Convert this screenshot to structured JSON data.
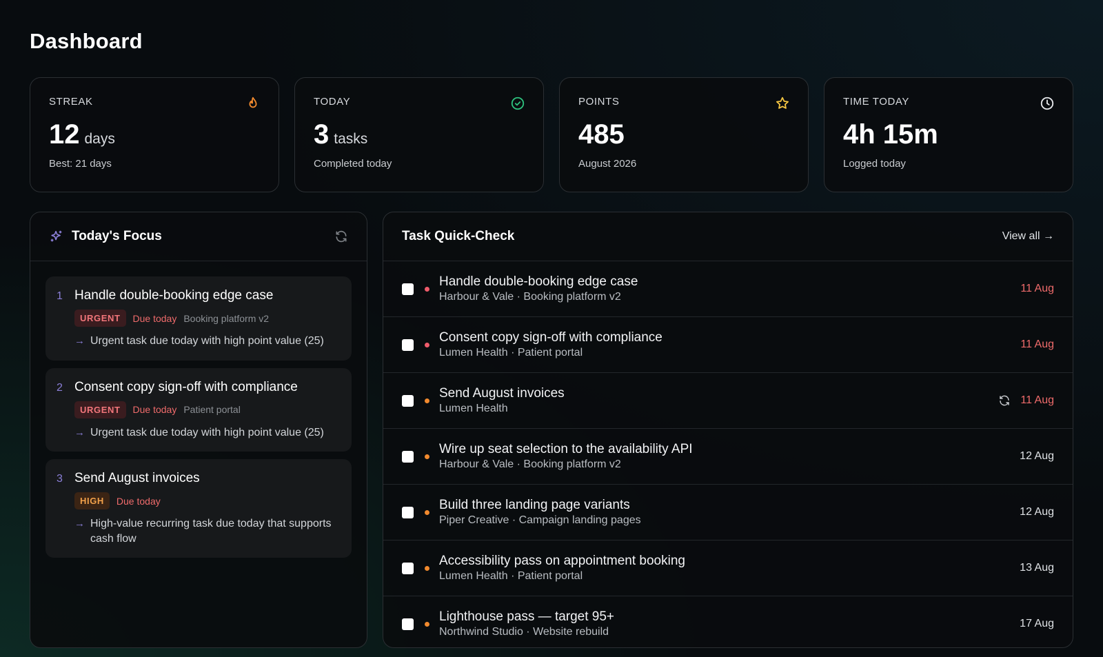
{
  "page": {
    "title": "Dashboard"
  },
  "colors": {
    "urgent": "#ef5b6b",
    "high": "#f28a2e",
    "accent": "#8b7fd8",
    "check_green": "#2ec27e",
    "star_yellow": "#f5c542"
  },
  "stats": [
    {
      "label": "STREAK",
      "icon": "flame-icon",
      "value": "12",
      "unit": "days",
      "sub": "Best: 21 days"
    },
    {
      "label": "TODAY",
      "icon": "check-circle-icon",
      "value": "3",
      "unit": "tasks",
      "sub": "Completed today"
    },
    {
      "label": "POINTS",
      "icon": "star-icon",
      "value": "485",
      "unit": "",
      "sub": "August 2026"
    },
    {
      "label": "TIME TODAY",
      "icon": "clock-icon",
      "value": "4h 15m",
      "unit": "",
      "sub": "Logged today"
    }
  ],
  "focus": {
    "title": "Today's Focus",
    "items": [
      {
        "index": "1",
        "title": "Handle double-booking edge case",
        "priority": "URGENT",
        "due": "Due today",
        "project": "Booking platform v2",
        "reason": "Urgent task due today with high point value (25)"
      },
      {
        "index": "2",
        "title": "Consent copy sign-off with compliance",
        "priority": "URGENT",
        "due": "Due today",
        "project": "Patient portal",
        "reason": "Urgent task due today with high point value (25)"
      },
      {
        "index": "3",
        "title": "Send August invoices",
        "priority": "HIGH",
        "due": "Due today",
        "project": "",
        "reason": "High-value recurring task due today that supports cash flow"
      }
    ]
  },
  "tasks": {
    "title": "Task Quick-Check",
    "view_all": "View all →",
    "rows": [
      {
        "title": "Handle double-booking edge case",
        "sub": "Harbour & Vale · Booking platform v2",
        "date": "11 Aug",
        "priority": "urgent",
        "overdue": true,
        "recurring": false
      },
      {
        "title": "Consent copy sign-off with compliance",
        "sub": "Lumen Health · Patient portal",
        "date": "11 Aug",
        "priority": "urgent",
        "overdue": true,
        "recurring": false
      },
      {
        "title": "Send August invoices",
        "sub": "Lumen Health",
        "date": "11 Aug",
        "priority": "high",
        "overdue": true,
        "recurring": true
      },
      {
        "title": "Wire up seat selection to the availability API",
        "sub": "Harbour & Vale · Booking platform v2",
        "date": "12 Aug",
        "priority": "high",
        "overdue": false,
        "recurring": false
      },
      {
        "title": "Build three landing page variants",
        "sub": "Piper Creative · Campaign landing pages",
        "date": "12 Aug",
        "priority": "high",
        "overdue": false,
        "recurring": false
      },
      {
        "title": "Accessibility pass on appointment booking",
        "sub": "Lumen Health · Patient portal",
        "date": "13 Aug",
        "priority": "high",
        "overdue": false,
        "recurring": false
      },
      {
        "title": "Lighthouse pass — target 95+",
        "sub": "Northwind Studio · Website rebuild",
        "date": "17 Aug",
        "priority": "high",
        "overdue": false,
        "recurring": false
      }
    ]
  }
}
